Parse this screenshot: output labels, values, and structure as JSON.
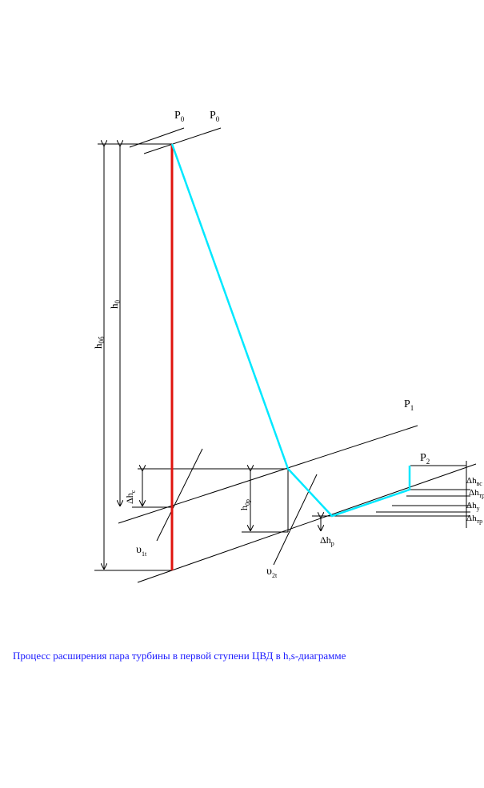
{
  "labels": {
    "p0_left": {
      "main": "P",
      "sub": "0"
    },
    "p0_right": {
      "main": "P",
      "sub": "0"
    },
    "p1": {
      "main": "P",
      "sub": "1"
    },
    "p2": {
      "main": "P",
      "sub": "2"
    },
    "h0b": {
      "main": "h",
      "sub": "0б"
    },
    "h0": {
      "main": "h",
      "sub": "0"
    },
    "dhc": {
      "main": "Δh",
      "sub": "c"
    },
    "h0p": {
      "main": "h",
      "sub": "0p"
    },
    "v1t": {
      "main": "υ",
      "sub": "1t"
    },
    "v2t": {
      "main": "υ",
      "sub": "2t"
    },
    "dhp": {
      "main": "Δh",
      "sub": "p"
    },
    "right_losses": [
      {
        "main": "Δh",
        "sub": "вс"
      },
      {
        "main": "Δh",
        "sub": "тр"
      },
      {
        "main": "Δh",
        "sub": "у"
      },
      {
        "main": "Δh",
        "sub": "тр"
      }
    ]
  },
  "caption": "Процесс расширения пара турбины в первой ступени ЦВД в h,s-диаграмме",
  "colors": {
    "isentropic_line": "#e0140f",
    "process_line": "#00e8ff",
    "caption_text": "#1a1aff"
  }
}
